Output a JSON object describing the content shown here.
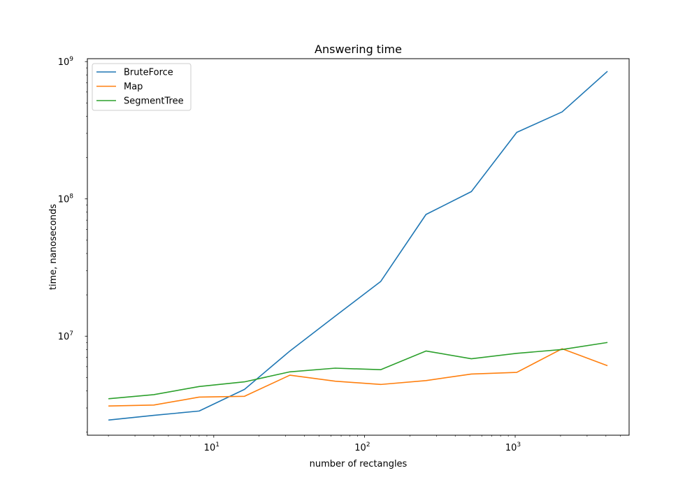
{
  "chart_data": {
    "type": "line",
    "title": "Answering time",
    "xlabel": "number of rectangles",
    "ylabel": "time, nanoseconds",
    "xscale": "log",
    "yscale": "log",
    "xlim": [
      1.45,
      5700
    ],
    "ylim": [
      1900000,
      1050000000
    ],
    "grid": false,
    "legend_position": "upper-left",
    "x": [
      2,
      4,
      8,
      16,
      32,
      64,
      128,
      256,
      512,
      1024,
      2048,
      4096
    ],
    "xticks": [
      {
        "value": 10,
        "base": "10",
        "exp": "1"
      },
      {
        "value": 100,
        "base": "10",
        "exp": "2"
      },
      {
        "value": 1000,
        "base": "10",
        "exp": "3"
      }
    ],
    "yticks": [
      {
        "value": 10000000,
        "base": "10",
        "exp": "7"
      },
      {
        "value": 100000000,
        "base": "10",
        "exp": "8"
      },
      {
        "value": 1000000000,
        "base": "10",
        "exp": "9"
      }
    ],
    "series": [
      {
        "name": "BruteForce",
        "color": "#1f77b4",
        "values": [
          2450000,
          2650000,
          2850000,
          4100000,
          7800000,
          14000000,
          25000000,
          77000000,
          113000000,
          305000000,
          430000000,
          850000000
        ]
      },
      {
        "name": "Map",
        "color": "#ff7f0e",
        "values": [
          3100000,
          3150000,
          3600000,
          3650000,
          5200000,
          4700000,
          4450000,
          4750000,
          5300000,
          5450000,
          8100000,
          6100000
        ]
      },
      {
        "name": "SegmentTree",
        "color": "#2ca02c",
        "values": [
          3500000,
          3750000,
          4300000,
          4650000,
          5500000,
          5850000,
          5700000,
          7800000,
          6850000,
          7500000,
          8000000,
          9000000
        ]
      }
    ]
  }
}
